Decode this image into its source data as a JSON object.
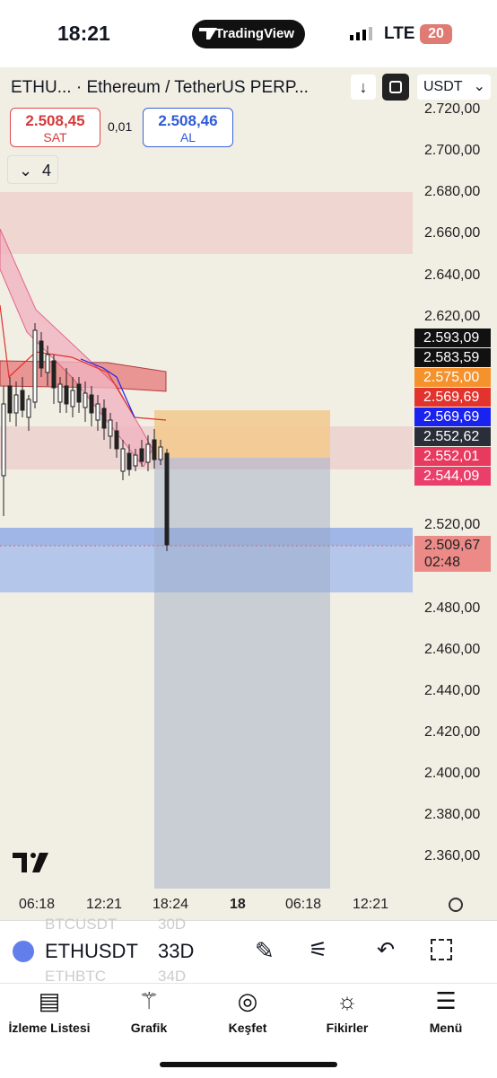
{
  "status": {
    "time": "18:21",
    "app": "TradingView",
    "network": "LTE",
    "battery": "20"
  },
  "header": {
    "symbol": "ETHU... · Ethereum / TetherUS PERP...",
    "currency": "USDT"
  },
  "trade": {
    "sell_price": "2.508,45",
    "sell": "SAT",
    "spread": "0,01",
    "buy_price": "2.508,46",
    "buy": "AL"
  },
  "indicators_count": "4",
  "price_axis": [
    "2.720,00",
    "2.700,00",
    "2.680,00",
    "2.660,00",
    "2.640,00",
    "2.620,00",
    "2.520,00",
    "2.480,00",
    "2.460,00",
    "2.440,00",
    "2.420,00",
    "2.400,00",
    "2.380,00",
    "2.360,00"
  ],
  "price_tags": [
    {
      "label": "2.593,09",
      "color": "#111111"
    },
    {
      "label": "2.583,59",
      "color": "#111111"
    },
    {
      "label": "2.575,00",
      "color": "#f5922b"
    },
    {
      "label": "2.569,69",
      "color": "#e2332c"
    },
    {
      "label": "2.569,69",
      "color": "#1a22f0"
    },
    {
      "label": "2.552,62",
      "color": "#2a2e39"
    },
    {
      "label": "2.552,01",
      "color": "#e8395f"
    },
    {
      "label": "2.544,09",
      "color": "#ea3f6a"
    }
  ],
  "last_price": {
    "price": "2.509,67",
    "countdown": "02:48"
  },
  "time_axis": [
    "06:18",
    "12:21",
    "18:24",
    "18",
    "06:18",
    "12:21"
  ],
  "watchlist": {
    "prev": {
      "symbol": "BTCUSDT",
      "interval": "30D"
    },
    "current": {
      "symbol": "ETHUSDT",
      "interval": "33D"
    },
    "next": {
      "symbol": "ETHBTC",
      "interval": "34D"
    }
  },
  "nav": [
    "İzleme Listesi",
    "Grafik",
    "Keşfet",
    "Fikirler",
    "Menü"
  ]
}
